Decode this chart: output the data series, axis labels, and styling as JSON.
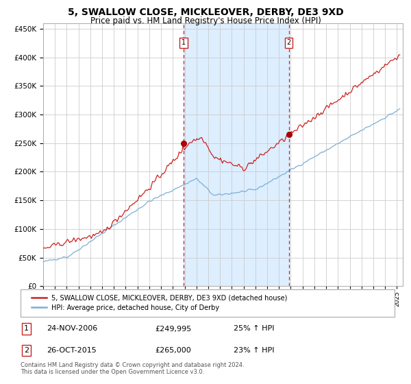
{
  "title": "5, SWALLOW CLOSE, MICKLEOVER, DERBY, DE3 9XD",
  "subtitle": "Price paid vs. HM Land Registry's House Price Index (HPI)",
  "title_fontsize": 10,
  "subtitle_fontsize": 8.5,
  "yticks": [
    0,
    50000,
    100000,
    150000,
    200000,
    250000,
    300000,
    350000,
    400000,
    450000
  ],
  "xlim_start": 1995.0,
  "xlim_end": 2025.5,
  "ylim_min": 0,
  "ylim_max": 460000,
  "sale1_year": 2006.9,
  "sale1_price": 249995,
  "sale2_year": 2015.83,
  "sale2_price": 265000,
  "hpi_line_color": "#7bafd4",
  "price_line_color": "#cc2222",
  "sale_marker_color": "#aa0000",
  "vline_color": "#cc2222",
  "shade_color": "#ddeeff",
  "grid_color": "#cccccc",
  "background_color": "#ffffff",
  "legend_entry1": "5, SWALLOW CLOSE, MICKLEOVER, DERBY, DE3 9XD (detached house)",
  "legend_entry2": "HPI: Average price, detached house, City of Derby",
  "table_row1": [
    "1",
    "24-NOV-2006",
    "£249,995",
    "25% ↑ HPI"
  ],
  "table_row2": [
    "2",
    "26-OCT-2015",
    "£265,000",
    "23% ↑ HPI"
  ],
  "footnote": "Contains HM Land Registry data © Crown copyright and database right 2024.\nThis data is licensed under the Open Government Licence v3.0."
}
